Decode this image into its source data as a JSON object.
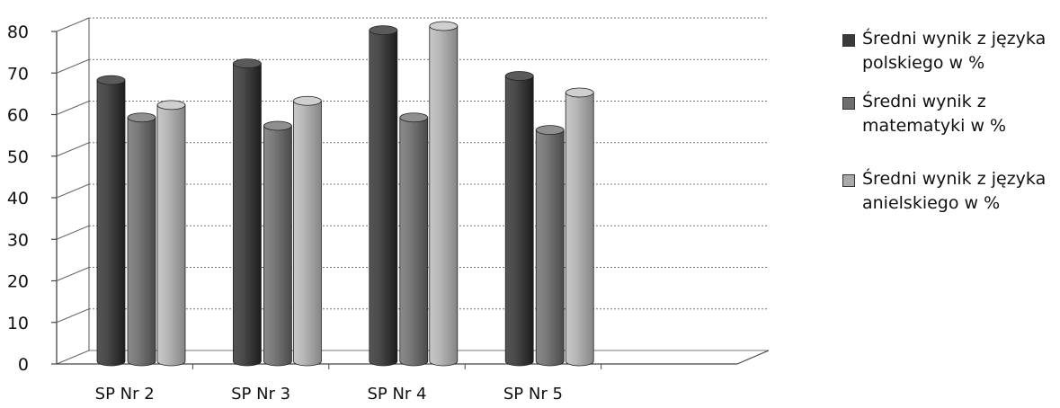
{
  "chart_data": {
    "type": "bar",
    "categories": [
      "SP Nr 2",
      "SP Nr 3",
      "SP Nr 4",
      "SP Nr 5"
    ],
    "series": [
      {
        "name": "Średni wynik z języka polskiego w %",
        "values": [
          67,
          71,
          79,
          68
        ],
        "color": "#3a3a3a"
      },
      {
        "name": "Średni wynik z matematyki w %",
        "values": [
          58,
          56,
          58,
          55
        ],
        "color": "#6e6e6e"
      },
      {
        "name": "Średni wynik z języka anielskiego w %",
        "values": [
          61,
          62,
          80,
          64
        ],
        "color": "#a9a9a9"
      }
    ],
    "y_ticks": [
      "0",
      "10",
      "20",
      "30",
      "40",
      "50",
      "60",
      "70",
      "80"
    ],
    "ylim": [
      0,
      80
    ],
    "grid": true,
    "legend_position": "right",
    "style": "3d-cylinder"
  }
}
